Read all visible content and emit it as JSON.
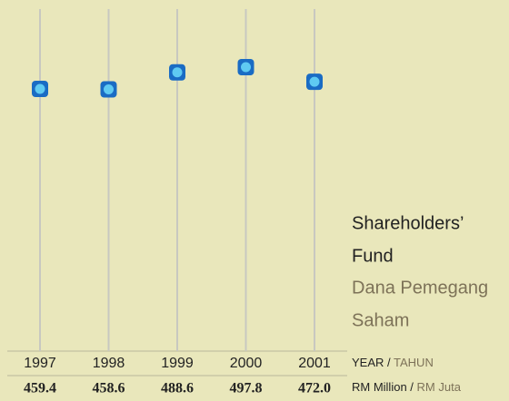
{
  "chart_data": {
    "type": "dot",
    "title": [
      "Shareholders’",
      "Fund"
    ],
    "subtitle": [
      "Dana Pemegang",
      "Saham"
    ],
    "x_label": {
      "en": "YEAR /",
      "ms": "TAHUN"
    },
    "unit_label": {
      "en": "RM Million /",
      "ms": "RM Juta"
    },
    "categories": [
      "1997",
      "1998",
      "1999",
      "2000",
      "2001"
    ],
    "values": [
      459.4,
      458.6,
      488.6,
      497.8,
      472.0
    ],
    "value_labels": [
      "459.4",
      "458.6",
      "488.6",
      "497.8",
      "472.0"
    ],
    "color": "#1a6cc4",
    "inner_color": "#5fcaf2"
  }
}
